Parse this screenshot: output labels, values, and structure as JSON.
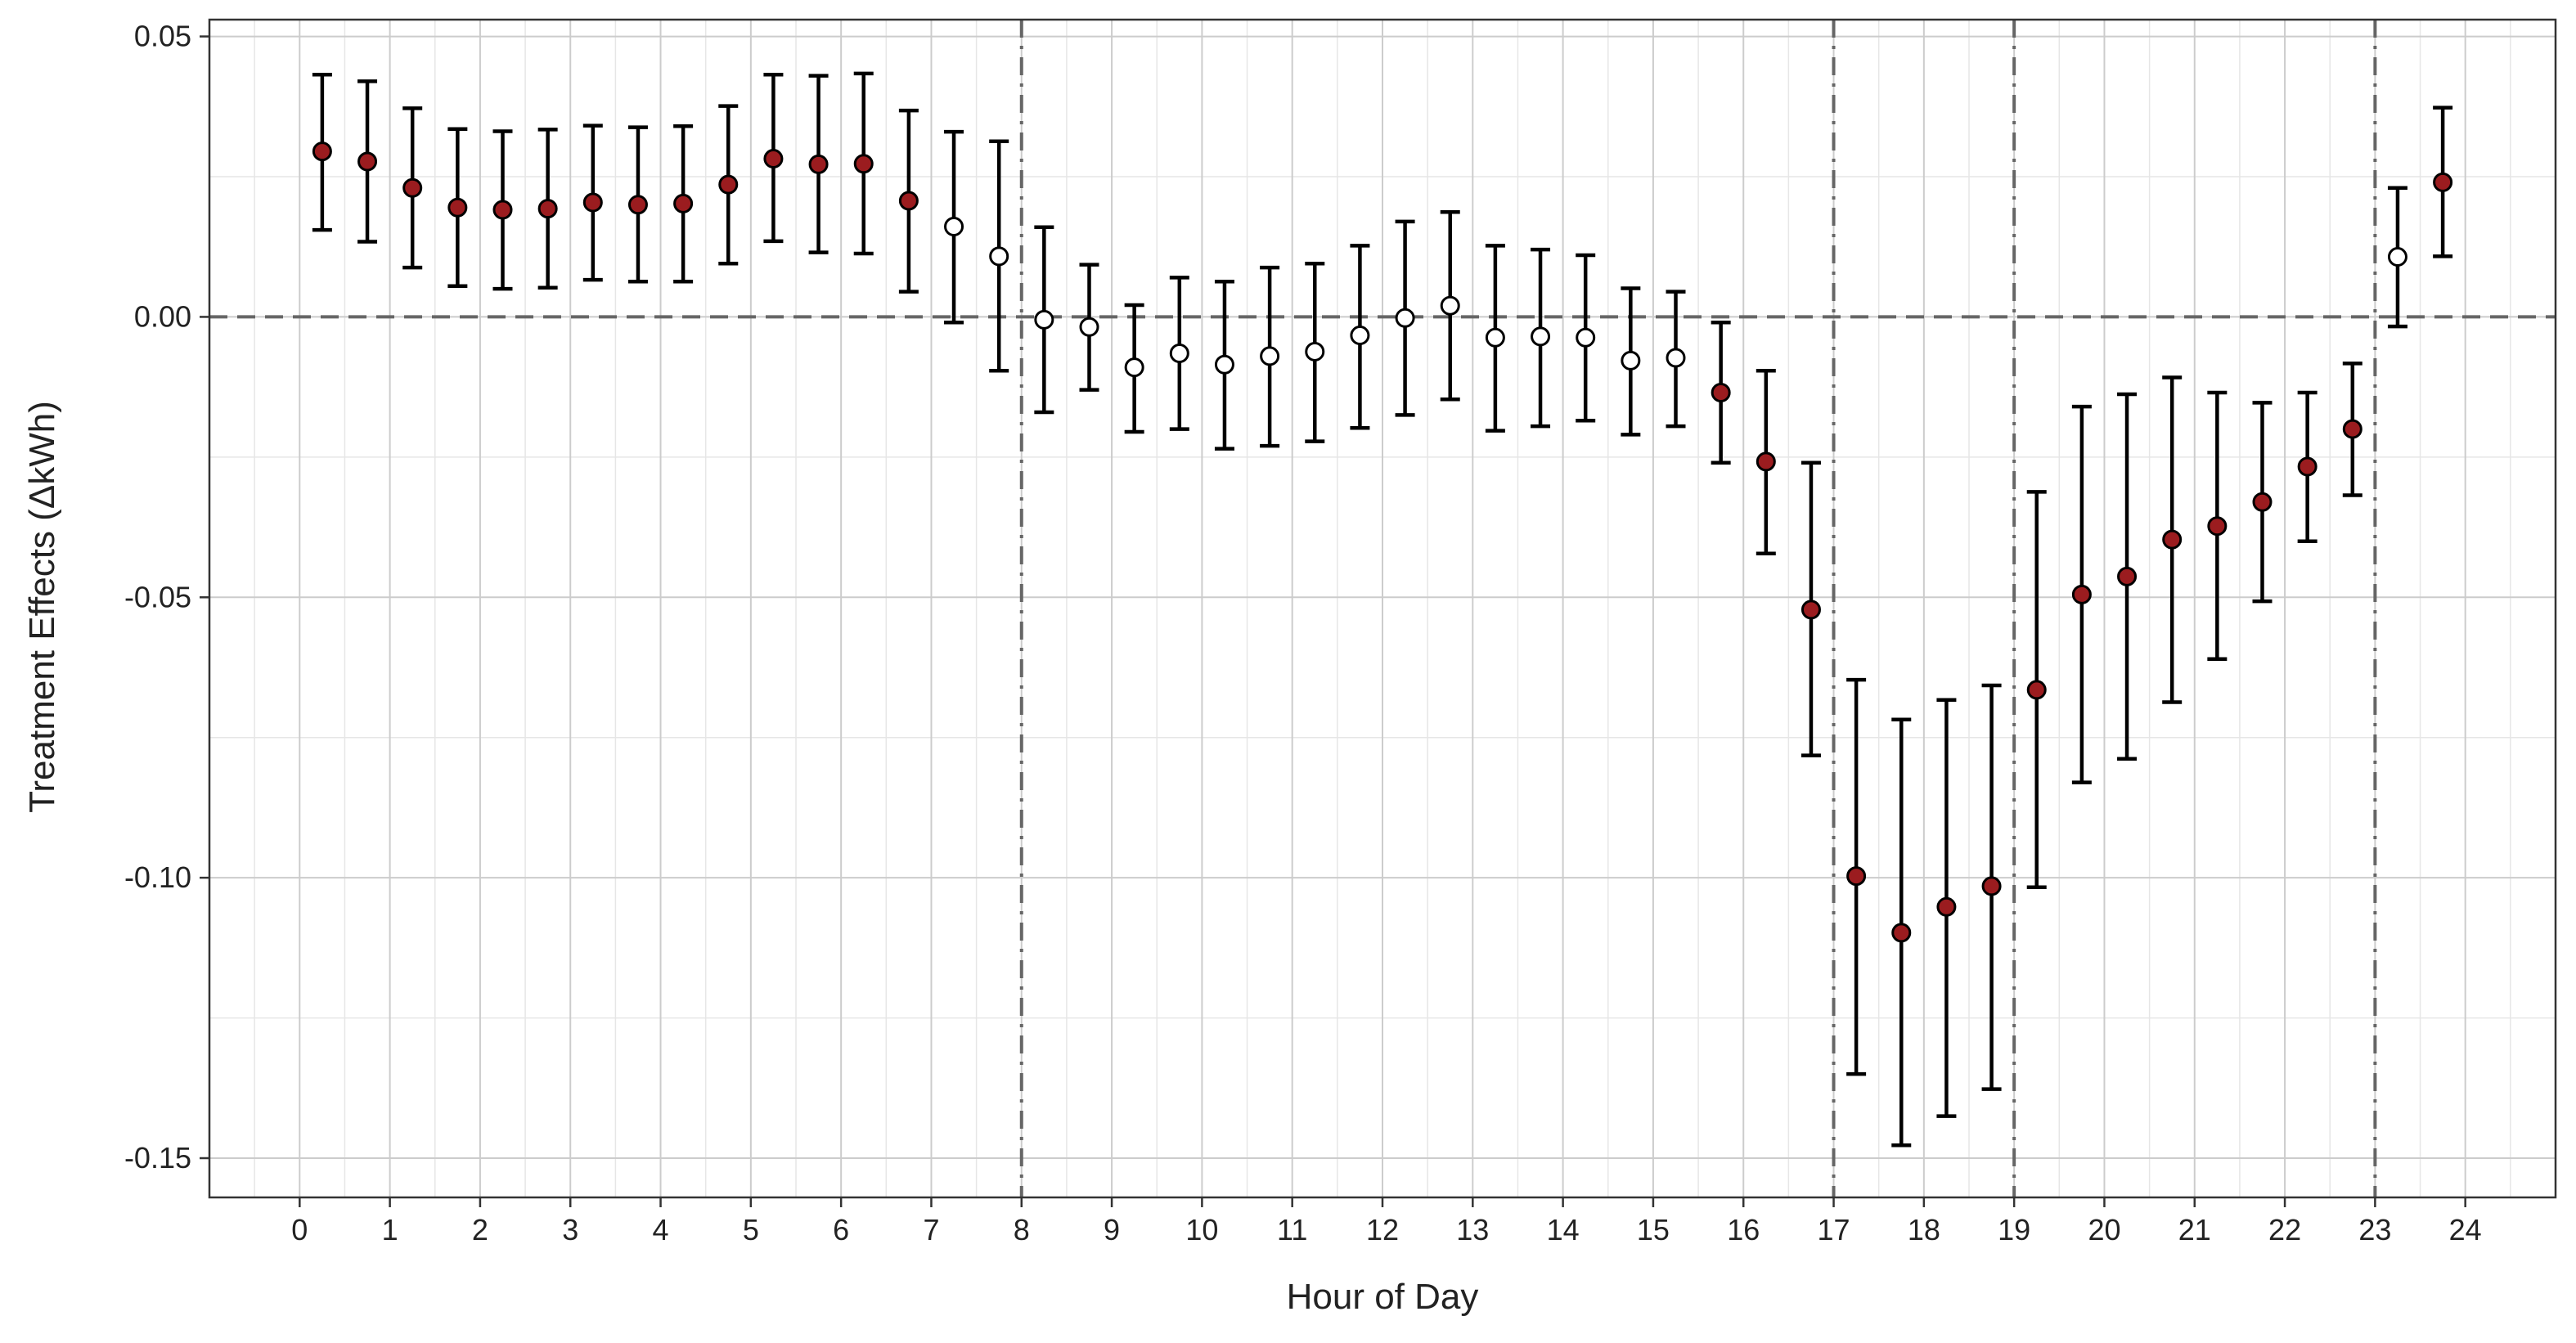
{
  "chart_data": {
    "type": "scatter",
    "subtype": "point-with-error-bars",
    "title": "",
    "xlabel": "Hour of Day",
    "ylabel": "Treatment Effects  (ΔkWh)",
    "xlim": [
      -1,
      25
    ],
    "ylim": [
      -0.157,
      0.053
    ],
    "x_ticks": [
      0,
      1,
      2,
      3,
      4,
      5,
      6,
      7,
      8,
      9,
      10,
      11,
      12,
      13,
      14,
      15,
      16,
      17,
      18,
      19,
      20,
      21,
      22,
      23,
      24
    ],
    "x_tick_labels": [
      "0",
      "1",
      "2",
      "3",
      "4",
      "5",
      "6",
      "7",
      "8",
      "9",
      "10",
      "11",
      "12",
      "13",
      "14",
      "15",
      "16",
      "17",
      "18",
      "19",
      "20",
      "21",
      "22",
      "23",
      "24"
    ],
    "y_ticks": [
      0.05,
      0.0,
      -0.05,
      -0.1,
      -0.15
    ],
    "y_tick_labels": [
      "0.05",
      "0.00",
      "-0.05",
      "-0.10",
      "-0.15"
    ],
    "grid": true,
    "reference_lines": {
      "horizontal_dashed_y": 0,
      "vertical_dashdot_x": [
        8,
        17,
        19,
        23
      ]
    },
    "colors": {
      "significant_fill": "#9b1c1f",
      "not_significant_fill": "#ffffff",
      "marker_edge": "#000000",
      "error_bar": "#000000",
      "reference_line": "#666666",
      "grid_major": "#cccccc",
      "grid_minor": "#e6e6e6",
      "panel_border": "#333333"
    },
    "points": [
      {
        "x": 0.25,
        "y": 0.0295,
        "lo": 0.0155,
        "hi": 0.0432,
        "significant": true
      },
      {
        "x": 0.75,
        "y": 0.0277,
        "lo": 0.0134,
        "hi": 0.042,
        "significant": true
      },
      {
        "x": 1.25,
        "y": 0.023,
        "lo": 0.0088,
        "hi": 0.0372,
        "significant": true
      },
      {
        "x": 1.75,
        "y": 0.0195,
        "lo": 0.0055,
        "hi": 0.0335,
        "significant": true
      },
      {
        "x": 2.25,
        "y": 0.0191,
        "lo": 0.005,
        "hi": 0.0331,
        "significant": true
      },
      {
        "x": 2.75,
        "y": 0.0193,
        "lo": 0.0052,
        "hi": 0.0334,
        "significant": true
      },
      {
        "x": 3.25,
        "y": 0.0204,
        "lo": 0.0066,
        "hi": 0.0341,
        "significant": true
      },
      {
        "x": 3.75,
        "y": 0.02,
        "lo": 0.0063,
        "hi": 0.0338,
        "significant": true
      },
      {
        "x": 4.25,
        "y": 0.0202,
        "lo": 0.0063,
        "hi": 0.034,
        "significant": true
      },
      {
        "x": 4.75,
        "y": 0.0236,
        "lo": 0.0095,
        "hi": 0.0376,
        "significant": true
      },
      {
        "x": 5.25,
        "y": 0.0282,
        "lo": 0.0135,
        "hi": 0.0432,
        "significant": true
      },
      {
        "x": 5.75,
        "y": 0.0272,
        "lo": 0.0115,
        "hi": 0.043,
        "significant": true
      },
      {
        "x": 6.25,
        "y": 0.0273,
        "lo": 0.0113,
        "hi": 0.0434,
        "significant": true
      },
      {
        "x": 6.75,
        "y": 0.0207,
        "lo": 0.0045,
        "hi": 0.0368,
        "significant": true
      },
      {
        "x": 7.25,
        "y": 0.0161,
        "lo": -0.001,
        "hi": 0.033,
        "significant": false
      },
      {
        "x": 7.75,
        "y": 0.0108,
        "lo": -0.0096,
        "hi": 0.0313,
        "significant": false
      },
      {
        "x": 8.25,
        "y": -0.0005,
        "lo": -0.017,
        "hi": 0.016,
        "significant": false
      },
      {
        "x": 8.75,
        "y": -0.0018,
        "lo": -0.013,
        "hi": 0.0093,
        "significant": false
      },
      {
        "x": 9.25,
        "y": -0.009,
        "lo": -0.0205,
        "hi": 0.0021,
        "significant": false
      },
      {
        "x": 9.75,
        "y": -0.0065,
        "lo": -0.02,
        "hi": 0.007,
        "significant": false
      },
      {
        "x": 10.25,
        "y": -0.0085,
        "lo": -0.0235,
        "hi": 0.0063,
        "significant": false
      },
      {
        "x": 10.75,
        "y": -0.007,
        "lo": -0.023,
        "hi": 0.0088,
        "significant": false
      },
      {
        "x": 11.25,
        "y": -0.0062,
        "lo": -0.0222,
        "hi": 0.0095,
        "significant": false
      },
      {
        "x": 11.75,
        "y": -0.0033,
        "lo": -0.0198,
        "hi": 0.0127,
        "significant": false
      },
      {
        "x": 12.25,
        "y": -0.0002,
        "lo": -0.0175,
        "hi": 0.017,
        "significant": false
      },
      {
        "x": 12.75,
        "y": 0.002,
        "lo": -0.0147,
        "hi": 0.0187,
        "significant": false
      },
      {
        "x": 13.25,
        "y": -0.0037,
        "lo": -0.0203,
        "hi": 0.0127,
        "significant": false
      },
      {
        "x": 13.75,
        "y": -0.0035,
        "lo": -0.0195,
        "hi": 0.012,
        "significant": false
      },
      {
        "x": 14.25,
        "y": -0.0037,
        "lo": -0.0185,
        "hi": 0.011,
        "significant": false
      },
      {
        "x": 14.75,
        "y": -0.0078,
        "lo": -0.021,
        "hi": 0.0051,
        "significant": false
      },
      {
        "x": 15.25,
        "y": -0.0073,
        "lo": -0.0195,
        "hi": 0.0045,
        "significant": false
      },
      {
        "x": 15.75,
        "y": -0.0135,
        "lo": -0.026,
        "hi": -0.001,
        "significant": true
      },
      {
        "x": 16.25,
        "y": -0.0258,
        "lo": -0.0422,
        "hi": -0.0096,
        "significant": true
      },
      {
        "x": 16.75,
        "y": -0.0522,
        "lo": -0.0782,
        "hi": -0.026,
        "significant": true
      },
      {
        "x": 17.25,
        "y": -0.0997,
        "lo": -0.135,
        "hi": -0.0647,
        "significant": true
      },
      {
        "x": 17.75,
        "y": -0.1098,
        "lo": -0.1477,
        "hi": -0.0718,
        "significant": true
      },
      {
        "x": 18.25,
        "y": -0.1052,
        "lo": -0.1425,
        "hi": -0.0683,
        "significant": true
      },
      {
        "x": 18.75,
        "y": -0.1015,
        "lo": -0.1377,
        "hi": -0.0657,
        "significant": true
      },
      {
        "x": 19.25,
        "y": -0.0665,
        "lo": -0.1017,
        "hi": -0.0312,
        "significant": true
      },
      {
        "x": 19.75,
        "y": -0.0495,
        "lo": -0.083,
        "hi": -0.016,
        "significant": true
      },
      {
        "x": 20.25,
        "y": -0.0463,
        "lo": -0.0788,
        "hi": -0.0138,
        "significant": true
      },
      {
        "x": 20.75,
        "y": -0.0397,
        "lo": -0.0687,
        "hi": -0.0108,
        "significant": true
      },
      {
        "x": 21.25,
        "y": -0.0373,
        "lo": -0.061,
        "hi": -0.0135,
        "significant": true
      },
      {
        "x": 21.75,
        "y": -0.033,
        "lo": -0.0507,
        "hi": -0.0153,
        "significant": true
      },
      {
        "x": 22.25,
        "y": -0.0267,
        "lo": -0.04,
        "hi": -0.0135,
        "significant": true
      },
      {
        "x": 22.75,
        "y": -0.02,
        "lo": -0.0318,
        "hi": -0.0083,
        "significant": true
      },
      {
        "x": 23.25,
        "y": 0.0107,
        "lo": -0.0017,
        "hi": 0.023,
        "significant": false
      },
      {
        "x": 23.75,
        "y": 0.024,
        "lo": 0.0108,
        "hi": 0.0373,
        "significant": true
      }
    ]
  }
}
